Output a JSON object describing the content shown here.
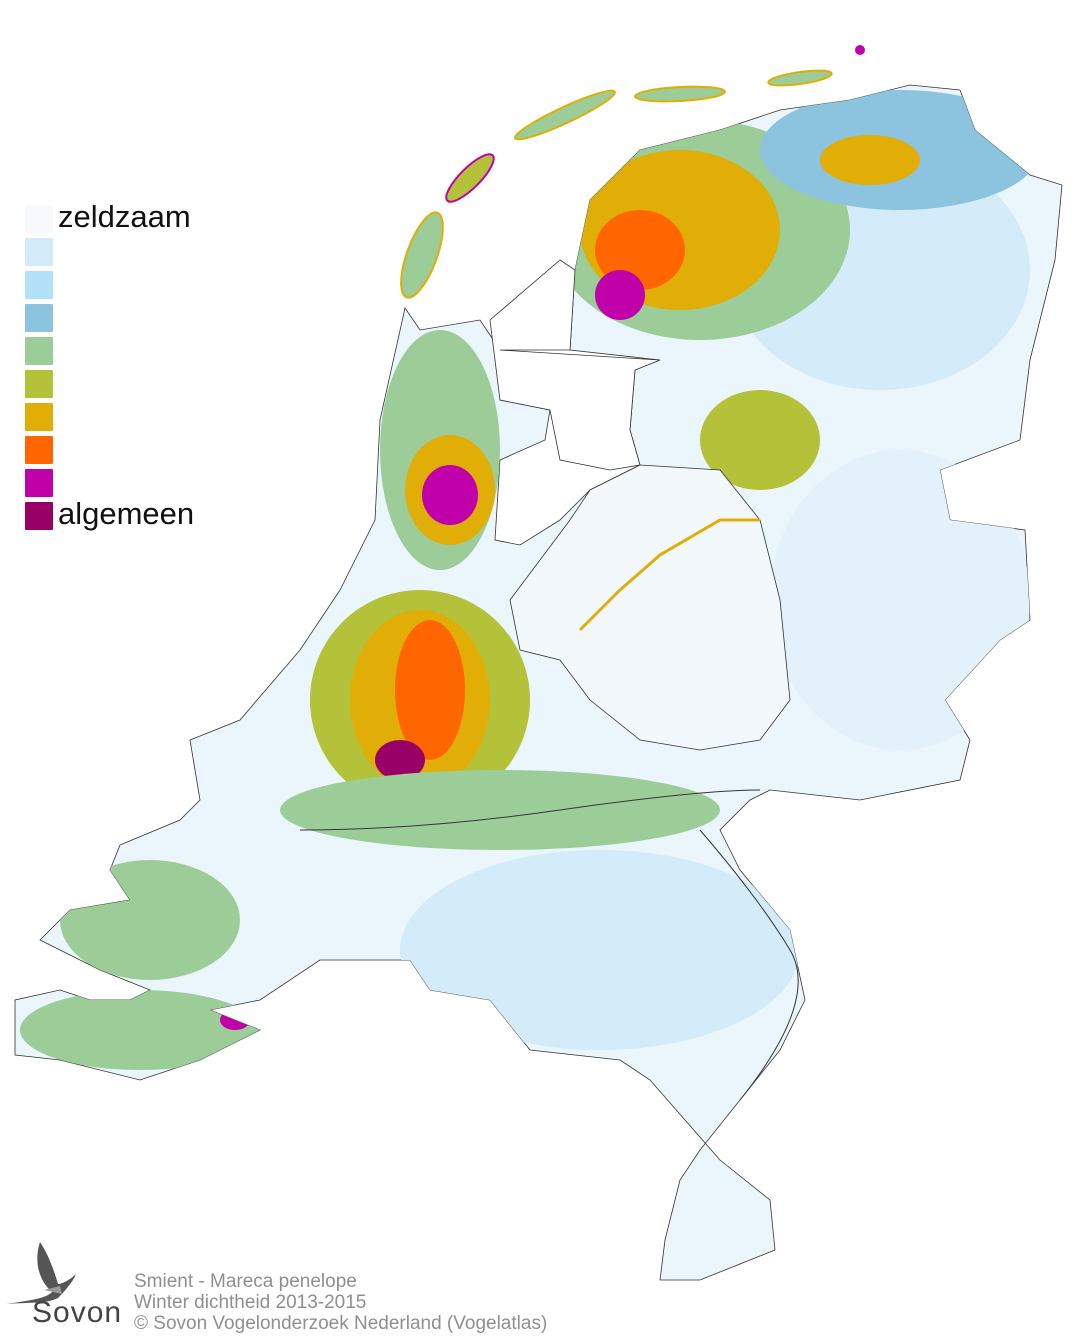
{
  "legend": {
    "items": [
      {
        "label": "zeldzaam",
        "color": "#f8f8ff"
      },
      {
        "label": "",
        "color": "#d4ebfa"
      },
      {
        "label": "",
        "color": "#b3e2f8"
      },
      {
        "label": "",
        "color": "#8cc4e0"
      },
      {
        "label": "",
        "color": "#9ccd98"
      },
      {
        "label": "",
        "color": "#b3c238"
      },
      {
        "label": "",
        "color": "#e0ae06"
      },
      {
        "label": "",
        "color": "#ff6600"
      },
      {
        "label": "",
        "color": "#c000a8"
      },
      {
        "label": "algemeen",
        "color": "#990066"
      }
    ]
  },
  "footer": {
    "species": "Smient - Mareca penelope",
    "subtitle": "Winter dichtheid 2013-2015",
    "copyright": "© Sovon Vogelonderzoek Nederland (Vogelatlas)"
  },
  "logo": {
    "text": "Sovon"
  }
}
